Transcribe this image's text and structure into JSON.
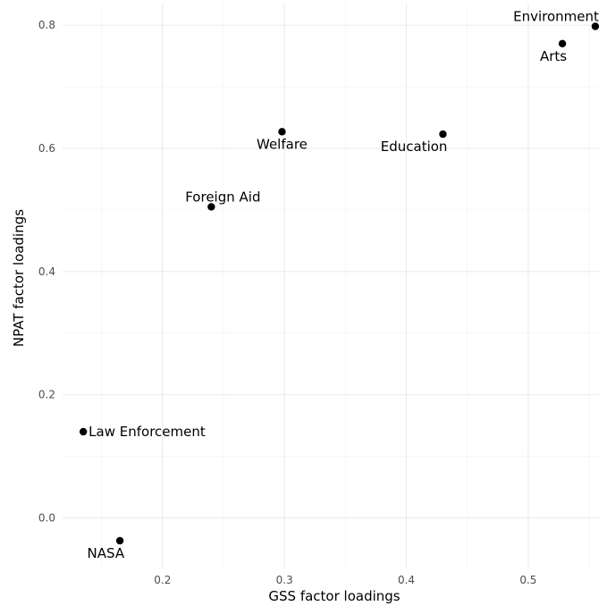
{
  "chart_data": {
    "type": "scatter",
    "title": "",
    "xlabel": "GSS factor loadings",
    "ylabel": "NPAT factor loadings",
    "xlim": [
      0.118,
      0.558
    ],
    "ylim": [
      -0.082,
      0.835
    ],
    "x_ticks": [
      0.2,
      0.3,
      0.4,
      0.5
    ],
    "y_ticks": [
      0.0,
      0.2,
      0.4,
      0.6,
      0.8
    ],
    "x_tick_labels": [
      "0.2",
      "0.3",
      "0.4",
      "0.5"
    ],
    "y_tick_labels": [
      "0.0",
      "0.2",
      "0.4",
      "0.6",
      "0.8"
    ],
    "grid": true,
    "points": [
      {
        "label": "Environment",
        "x": 0.555,
        "y": 0.798,
        "label_pos": "above-left"
      },
      {
        "label": "Arts",
        "x": 0.528,
        "y": 0.77,
        "label_pos": "below-left"
      },
      {
        "label": "Welfare",
        "x": 0.298,
        "y": 0.627,
        "label_pos": "below"
      },
      {
        "label": "Education",
        "x": 0.43,
        "y": 0.623,
        "label_pos": "below-left"
      },
      {
        "label": "Foreign Aid",
        "x": 0.24,
        "y": 0.505,
        "label_pos": "above"
      },
      {
        "label": "Law Enforcement",
        "x": 0.135,
        "y": 0.14,
        "label_pos": "right"
      },
      {
        "label": "NASA",
        "x": 0.165,
        "y": -0.037,
        "label_pos": "below-left"
      }
    ]
  }
}
